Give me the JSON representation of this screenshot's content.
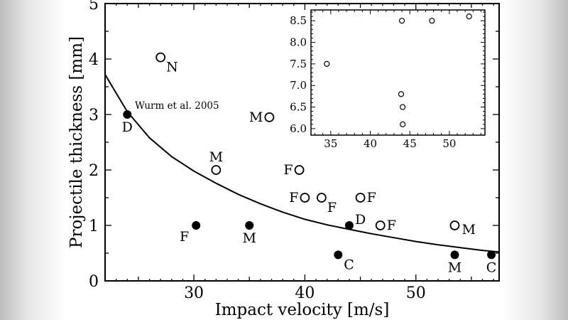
{
  "chart_data": [
    {
      "type": "scatter",
      "xlabel": "Impact velocity [m/s]",
      "ylabel": "Projectile thickness [mm]",
      "xlim": [
        22,
        57.5
      ],
      "ylim": [
        0,
        5
      ],
      "x_ticks": [
        30,
        40,
        50
      ],
      "y_ticks": [
        0,
        1,
        2,
        3,
        4,
        5
      ],
      "grid": false,
      "annotation": "Wurm et al. 2005",
      "fit_curve": {
        "points": [
          [
            22,
            3.72
          ],
          [
            24,
            3.05
          ],
          [
            26,
            2.58
          ],
          [
            28,
            2.24
          ],
          [
            30,
            1.98
          ],
          [
            32,
            1.76
          ],
          [
            34,
            1.56
          ],
          [
            36,
            1.39
          ],
          [
            38,
            1.24
          ],
          [
            40,
            1.11
          ],
          [
            42,
            1.01
          ],
          [
            44,
            0.93
          ],
          [
            46,
            0.85
          ],
          [
            48,
            0.78
          ],
          [
            50,
            0.71
          ],
          [
            52,
            0.65
          ],
          [
            54,
            0.6
          ],
          [
            56,
            0.55
          ],
          [
            57.5,
            0.52
          ]
        ]
      },
      "series": [
        {
          "marker": "open",
          "points": [
            {
              "x": 27.0,
              "y": 4.03,
              "label": "N",
              "pos": "br"
            },
            {
              "x": 36.8,
              "y": 2.95,
              "label": "M",
              "pos": "l"
            },
            {
              "x": 32.0,
              "y": 2.0,
              "label": "M",
              "pos": "t"
            },
            {
              "x": 39.5,
              "y": 2.0,
              "label": "F",
              "pos": "l"
            },
            {
              "x": 40.0,
              "y": 1.5,
              "label": "F",
              "pos": "l"
            },
            {
              "x": 41.5,
              "y": 1.5,
              "label": "F",
              "pos": "br"
            },
            {
              "x": 45.0,
              "y": 1.5,
              "label": "F",
              "pos": "r"
            },
            {
              "x": 46.8,
              "y": 1.0,
              "label": "F",
              "pos": "r"
            },
            {
              "x": 53.5,
              "y": 1.0,
              "label": "M",
              "pos": "rl"
            }
          ]
        },
        {
          "marker": "filled",
          "points": [
            {
              "x": 24.0,
              "y": 3.0,
              "label": "D",
              "pos": "b"
            },
            {
              "x": 30.2,
              "y": 1.0,
              "label": "F",
              "pos": "bl"
            },
            {
              "x": 35.0,
              "y": 1.0,
              "label": "M",
              "pos": "b"
            },
            {
              "x": 43.0,
              "y": 0.47,
              "label": "C",
              "pos": "br"
            },
            {
              "x": 44.0,
              "y": 1.0,
              "label": "D",
              "pos": "tr"
            },
            {
              "x": 53.5,
              "y": 0.47,
              "label": "M",
              "pos": "b"
            },
            {
              "x": 56.8,
              "y": 0.47,
              "label": "C",
              "pos": "b"
            }
          ]
        }
      ]
    },
    {
      "type": "scatter",
      "xlim": [
        32.5,
        54.5
      ],
      "ylim": [
        5.85,
        8.75
      ],
      "x_ticks": [
        35,
        40,
        45,
        50
      ],
      "y_ticks": [
        "6.0",
        "6.5",
        "7.0",
        "7.5",
        "8.0",
        "8.5"
      ],
      "grid": false,
      "legend": "none",
      "placement": "top-right inset",
      "series": [
        {
          "marker": "open",
          "points": [
            {
              "x": 34.5,
              "y": 7.5
            },
            {
              "x": 44.0,
              "y": 8.5
            },
            {
              "x": 47.8,
              "y": 8.5
            },
            {
              "x": 52.5,
              "y": 8.6
            },
            {
              "x": 43.9,
              "y": 6.8
            },
            {
              "x": 44.1,
              "y": 6.5
            },
            {
              "x": 44.1,
              "y": 6.1
            }
          ]
        }
      ]
    }
  ]
}
